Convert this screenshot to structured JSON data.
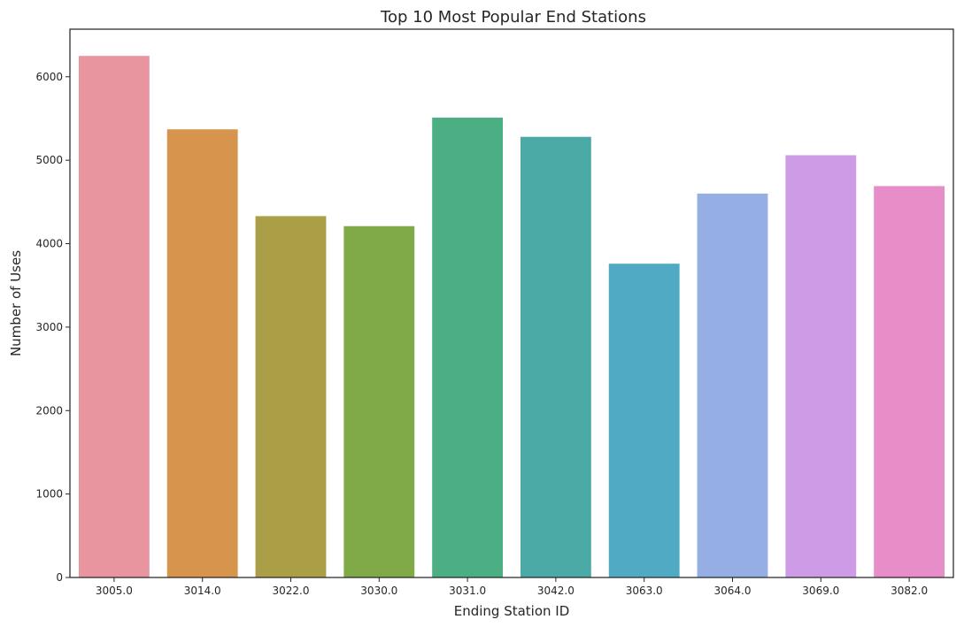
{
  "chart_data": {
    "type": "bar",
    "title": "Top 10 Most Popular End Stations",
    "xlabel": "Ending Station ID",
    "ylabel": "Number of Uses",
    "categories": [
      "3005.0",
      "3014.0",
      "3022.0",
      "3030.0",
      "3031.0",
      "3042.0",
      "3063.0",
      "3064.0",
      "3069.0",
      "3082.0"
    ],
    "values": [
      6250,
      5370,
      4330,
      4210,
      5510,
      5280,
      3760,
      4600,
      5060,
      4690
    ],
    "colors": [
      "#e8959f",
      "#d6944d",
      "#aa9e46",
      "#80a948",
      "#4cae83",
      "#4caaa6",
      "#51aac4",
      "#95aee4",
      "#ce9be6",
      "#e78ec9"
    ],
    "ylim": [
      0,
      6570
    ],
    "yticks": [
      0,
      1000,
      2000,
      3000,
      4000,
      5000,
      6000
    ],
    "grid": false,
    "legend": "none"
  }
}
